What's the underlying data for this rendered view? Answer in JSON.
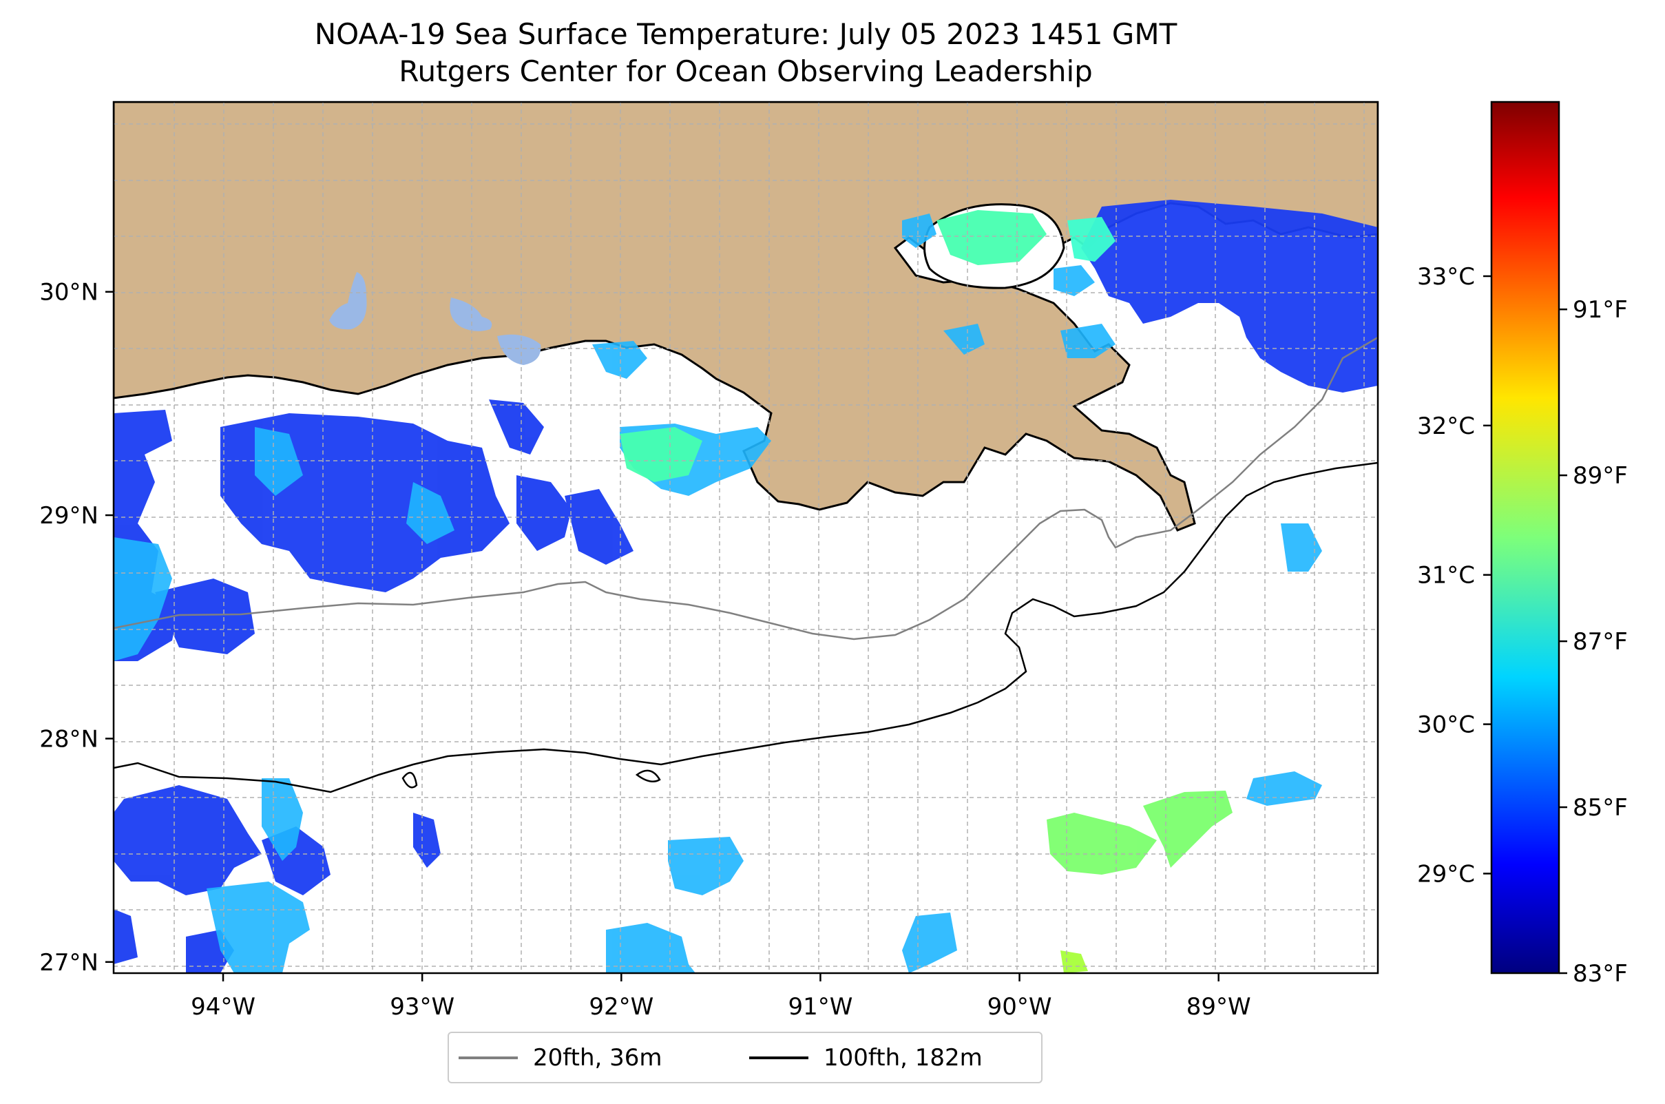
{
  "title": "NOAA-19 Sea Surface Temperature: July 05 2023 1451 GMT",
  "subtitle": "Rutgers Center for Ocean Observing Leadership",
  "map": {
    "lon_labels": [
      "94°W",
      "93°W",
      "92°W",
      "91°W",
      "90°W",
      "89°W"
    ],
    "lat_labels": [
      "30°N",
      "29°N",
      "28°N",
      "27°N"
    ],
    "lon_range": [
      -94.55,
      -88.2
    ],
    "lat_range": [
      26.95,
      30.85
    ],
    "gridlines": true,
    "land_color": "#d2b48c",
    "lake_color": "#9ab8e6",
    "coastline_color": "#000000"
  },
  "colorbar": {
    "celsius_labels": [
      "33°C",
      "32°C",
      "31°C",
      "30°C",
      "29°C"
    ],
    "fahrenheit_labels": [
      "91°F",
      "89°F",
      "87°F",
      "85°F",
      "83°F"
    ],
    "colormap": "jet",
    "range_f": [
      83,
      93.5
    ]
  },
  "legend": {
    "items": [
      {
        "label": "20fth, 36m",
        "color": "#808080"
      },
      {
        "label": "100fth, 182m",
        "color": "#000000"
      }
    ]
  }
}
